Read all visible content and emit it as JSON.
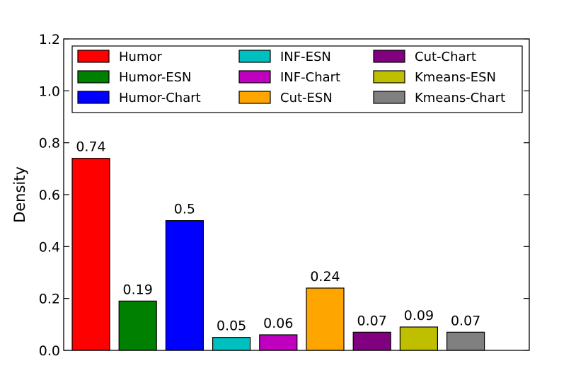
{
  "chart_data": {
    "type": "bar",
    "categories": [
      "Humor",
      "Humor-ESN",
      "Humor-Chart",
      "INF-ESN",
      "INF-Chart",
      "Cut-ESN",
      "Cut-Chart",
      "Kmeans-ESN",
      "Kmeans-Chart"
    ],
    "values": [
      0.74,
      0.19,
      0.5,
      0.05,
      0.06,
      0.24,
      0.07,
      0.09,
      0.07
    ],
    "value_labels": [
      "0.74",
      "0.19",
      "0.5",
      "0.05",
      "0.06",
      "0.24",
      "0.07",
      "0.09",
      "0.07"
    ],
    "colors": [
      "#ff0000",
      "#008000",
      "#0000ff",
      "#00bfbf",
      "#bf00bf",
      "#ffa500",
      "#800080",
      "#bfbf00",
      "#808080"
    ],
    "ylabel": "Density",
    "xlabel": "",
    "ylim": [
      0.0,
      1.2
    ],
    "yticks": [
      "0.0",
      "0.2",
      "0.4",
      "0.6",
      "0.8",
      "1.0",
      "1.2"
    ],
    "legend": {
      "placement": "top",
      "columns": 3,
      "entries": [
        "Humor",
        "Humor-ESN",
        "Humor-Chart",
        "INF-ESN",
        "INF-Chart",
        "Cut-ESN",
        "Cut-Chart",
        "Kmeans-ESN",
        "Kmeans-Chart"
      ]
    },
    "grid": false
  }
}
